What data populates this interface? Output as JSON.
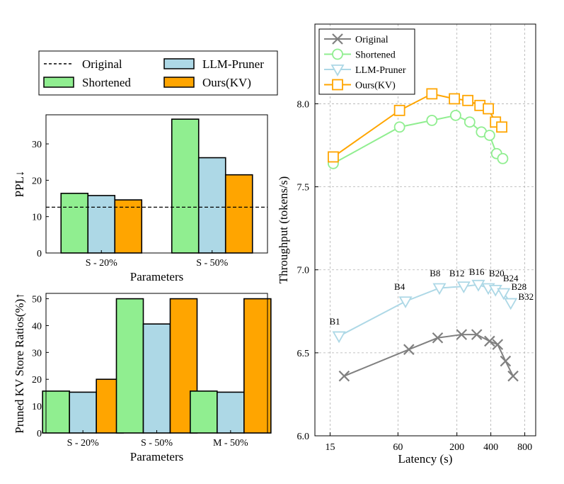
{
  "chart_data": [
    {
      "type": "legend",
      "entries": [
        {
          "label": "Original",
          "style": "dashed-line",
          "color": "#000000"
        },
        {
          "label": "LLM-Pruner",
          "style": "patch",
          "color": "#add8e6"
        },
        {
          "label": "Shortened",
          "style": "patch",
          "color": "#90ee90"
        },
        {
          "label": "Ours(KV)",
          "style": "patch",
          "color": "#ffa500"
        }
      ]
    },
    {
      "type": "bar",
      "title": "",
      "xlabel": "Parameters",
      "ylabel": "PPL↓",
      "categories": [
        "S - 20%",
        "S - 50%"
      ],
      "series": [
        {
          "name": "Shortened",
          "color": "#90ee90",
          "values": [
            16.4,
            36.8
          ]
        },
        {
          "name": "LLM-Pruner",
          "color": "#add8e6",
          "values": [
            15.8,
            26.2
          ]
        },
        {
          "name": "Ours(KV)",
          "color": "#ffa500",
          "values": [
            14.6,
            21.5
          ]
        }
      ],
      "reference_line": {
        "name": "Original",
        "value": 12.6
      },
      "ylim": [
        0,
        38
      ],
      "yticks": [
        0,
        10,
        20,
        30
      ]
    },
    {
      "type": "bar",
      "title": "",
      "xlabel": "Parameters",
      "ylabel": "Pruned KV Store Ratios(%)↑",
      "categories": [
        "S - 20%",
        "S - 50%",
        "M - 50%"
      ],
      "series": [
        {
          "name": "Shortened",
          "color": "#90ee90",
          "values": [
            15.6,
            50,
            15.6
          ]
        },
        {
          "name": "LLM-Pruner",
          "color": "#add8e6",
          "values": [
            15.2,
            40.6,
            15.2
          ]
        },
        {
          "name": "Ours(KV)",
          "color": "#ffa500",
          "values": [
            20,
            50,
            50
          ]
        }
      ],
      "ylim": [
        0,
        52
      ],
      "yticks": [
        0,
        10,
        20,
        30,
        40,
        50
      ]
    },
    {
      "type": "line",
      "title": "",
      "xlabel": "Latency (s)",
      "ylabel": "Throughput (tokens/s)",
      "xscale": "log2",
      "xlim": [
        11,
        1000
      ],
      "ylim": [
        6.0,
        8.48
      ],
      "xticks": [
        15,
        60,
        200,
        400,
        800
      ],
      "yticks": [
        6.0,
        6.5,
        7.0,
        7.5,
        8.0
      ],
      "yticklabels": [
        "6.0",
        "6.5",
        "7.0",
        "7.5",
        "8.0"
      ],
      "grid": true,
      "legend_position": "top-left",
      "series": [
        {
          "name": "Original",
          "color": "#808080",
          "marker": "x",
          "x": [
            20,
            75,
            135,
            220,
            300,
            390,
            460,
            540,
            630
          ],
          "y": [
            6.36,
            6.52,
            6.59,
            6.61,
            6.61,
            6.57,
            6.55,
            6.45,
            6.36
          ]
        },
        {
          "name": "Shortened",
          "color": "#90ee90",
          "marker": "circle",
          "x": [
            16,
            62,
            120,
            195,
            260,
            330,
            390,
            450,
            510
          ],
          "y": [
            7.64,
            7.86,
            7.9,
            7.93,
            7.89,
            7.83,
            7.81,
            7.7,
            7.67
          ]
        },
        {
          "name": "LLM-Pruner",
          "color": "#add8e6",
          "marker": "triangle-down",
          "x": [
            18,
            70,
            140,
            230,
            310,
            380,
            440,
            520,
            600
          ],
          "y": [
            6.6,
            6.81,
            6.89,
            6.9,
            6.91,
            6.89,
            6.88,
            6.86,
            6.8
          ]
        },
        {
          "name": "Ours(KV)",
          "color": "#ffa500",
          "marker": "square",
          "x": [
            16,
            62,
            120,
            190,
            250,
            320,
            380,
            440,
            500
          ],
          "y": [
            7.68,
            7.96,
            8.06,
            8.03,
            8.02,
            7.99,
            7.97,
            7.89,
            7.86
          ]
        }
      ],
      "annotations": [
        {
          "text": "B1",
          "x": 16.5,
          "y": 6.67
        },
        {
          "text": "B4",
          "x": 62,
          "y": 6.88
        },
        {
          "text": "B8",
          "x": 128,
          "y": 6.96
        },
        {
          "text": "B12",
          "x": 200,
          "y": 6.96
        },
        {
          "text": "B16",
          "x": 300,
          "y": 6.97
        },
        {
          "text": "B20",
          "x": 450,
          "y": 6.96
        },
        {
          "text": "B24",
          "x": 600,
          "y": 6.93
        },
        {
          "text": "B28",
          "x": 710,
          "y": 6.88
        },
        {
          "text": "B32",
          "x": 820,
          "y": 6.82
        }
      ]
    }
  ]
}
